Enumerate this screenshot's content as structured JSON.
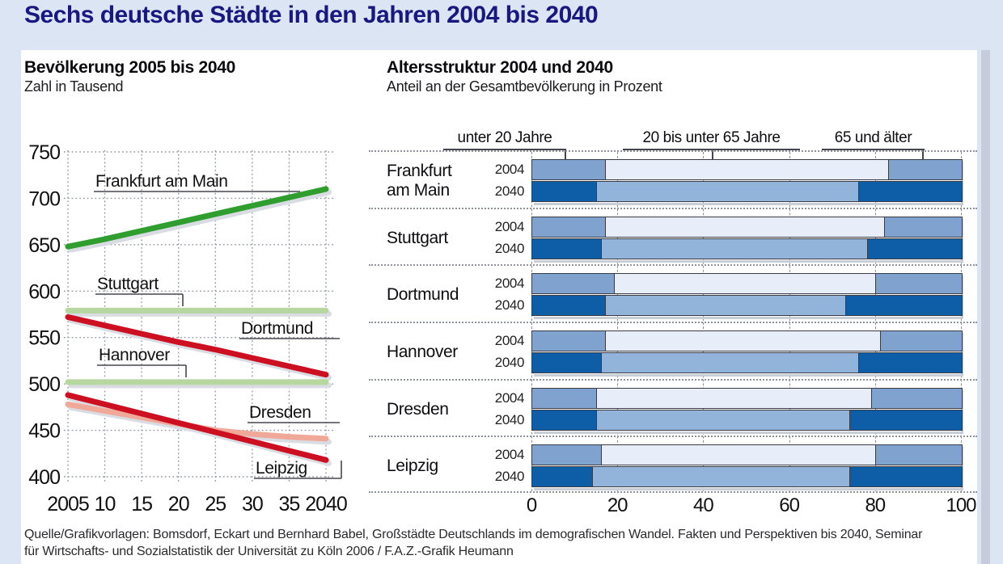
{
  "page": {
    "title": "Sechs deutsche Städte in den Jahren 2004 bis 2040",
    "title_color": "#181880",
    "background_color": "#dce5f4"
  },
  "source": {
    "line1": "Quelle/Grafikvorlagen: Bomsdorf, Eckart und Bernhard Babel, Großstädte Deutschlands im demografischen Wandel. Fakten und Perspektiven bis 2040, Seminar",
    "line2": "für Wirtschafts- und Sozialstatistik der Universität zu Köln 2006 / F.A.Z.-Grafik Heumann"
  },
  "chart_data": [
    {
      "type": "line",
      "title": "Bevölkerung 2005 bis 2040",
      "subtitle": "Zahl in Tausend",
      "x": [
        2005,
        2010,
        2015,
        2020,
        2025,
        2030,
        2035,
        2040
      ],
      "x_tick_labels": [
        "2005",
        "10",
        "15",
        "20",
        "25",
        "30",
        "35",
        "2040"
      ],
      "ylim": [
        400,
        750
      ],
      "y_ticks": [
        400,
        450,
        500,
        550,
        600,
        650,
        700,
        750
      ],
      "grid": true,
      "series": [
        {
          "name": "Frankfurt am Main",
          "color": "#2f9e2f",
          "values": [
            648,
            656,
            665,
            674,
            683,
            692,
            701,
            710
          ]
        },
        {
          "name": "Stuttgart",
          "color": "#b6d79f",
          "values": [
            579,
            579,
            579,
            579,
            579,
            579,
            579,
            579
          ]
        },
        {
          "name": "Dortmund",
          "color": "#cd1021",
          "values": [
            572,
            563,
            554,
            545,
            537,
            528,
            519,
            510
          ]
        },
        {
          "name": "Hannover",
          "color": "#b6d79f",
          "values": [
            502,
            502,
            502,
            502,
            502,
            502,
            502,
            502
          ]
        },
        {
          "name": "Dresden",
          "color": "#f0a898",
          "values": [
            478,
            471,
            464,
            457,
            450,
            446,
            443,
            441
          ]
        },
        {
          "name": "Leipzig",
          "color": "#cd1021",
          "values": [
            488,
            478,
            468,
            458,
            448,
            438,
            428,
            418
          ]
        }
      ]
    },
    {
      "type": "bar",
      "orientation": "horizontal-stacked",
      "title": "Altersstruktur 2004 und 2040",
      "subtitle": "Anteil an der Gesamtbevölkerung in Prozent",
      "age_groups": [
        "unter 20 Jahre",
        "20 bis unter 65 Jahre",
        "65 und älter"
      ],
      "year_labels": [
        "2004",
        "2040"
      ],
      "xlim": [
        0,
        100
      ],
      "x_ticks": [
        0,
        20,
        40,
        60,
        80,
        100
      ],
      "colors_2004": [
        "#7fa3ce",
        "#e8eef9",
        "#7fa3ce"
      ],
      "colors_2040": [
        "#0e5ea7",
        "#92b4db",
        "#0e5ea7"
      ],
      "cities": [
        {
          "name": "Frankfurt am Main",
          "label_lines": [
            "Frankfurt",
            "am Main"
          ],
          "y2004": [
            17,
            66,
            17
          ],
          "y2040": [
            15,
            61,
            24
          ]
        },
        {
          "name": "Stuttgart",
          "label_lines": [
            "Stuttgart"
          ],
          "y2004": [
            17,
            65,
            18
          ],
          "y2040": [
            16,
            62,
            22
          ]
        },
        {
          "name": "Dortmund",
          "label_lines": [
            "Dortmund"
          ],
          "y2004": [
            19,
            61,
            20
          ],
          "y2040": [
            17,
            56,
            27
          ]
        },
        {
          "name": "Hannover",
          "label_lines": [
            "Hannover"
          ],
          "y2004": [
            17,
            64,
            19
          ],
          "y2040": [
            16,
            60,
            24
          ]
        },
        {
          "name": "Dresden",
          "label_lines": [
            "Dresden"
          ],
          "y2004": [
            15,
            64,
            21
          ],
          "y2040": [
            15,
            59,
            26
          ]
        },
        {
          "name": "Leipzig",
          "label_lines": [
            "Leipzig"
          ],
          "y2004": [
            16,
            64,
            20
          ],
          "y2040": [
            14,
            60,
            26
          ]
        }
      ]
    }
  ]
}
